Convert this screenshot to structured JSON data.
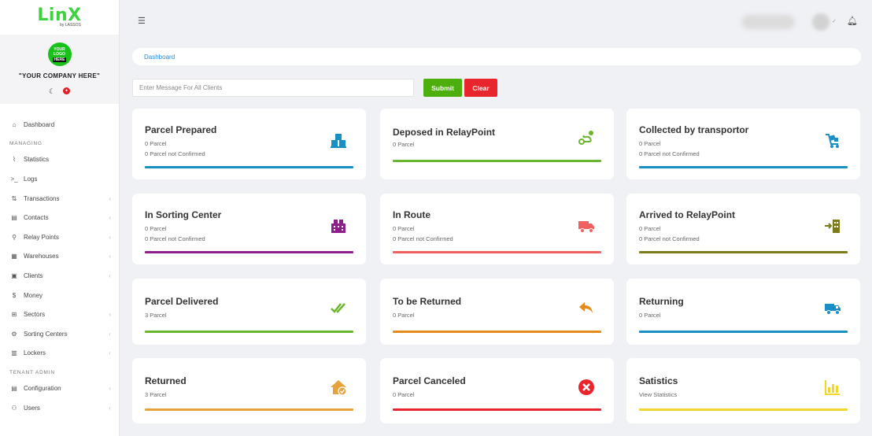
{
  "brand": {
    "logo_main": "LinX",
    "logo_sub": "by LASSOS"
  },
  "company": {
    "logo_line1": "YOUR",
    "logo_line2": "LOGO",
    "logo_line3": "HERE",
    "name": "\"YOUR COMPANY HERE\""
  },
  "sidebar": {
    "items_top": [
      {
        "label": "Dashboard",
        "icon": "dashboard-icon"
      }
    ],
    "section_managing": "MANAGING",
    "items_managing": [
      {
        "label": "Statistics",
        "icon": "chart-icon",
        "chevron": false
      },
      {
        "label": "Logs",
        "icon": "terminal-icon",
        "chevron": false
      },
      {
        "label": "Transactions",
        "icon": "transactions-icon",
        "chevron": true
      },
      {
        "label": "Contacts",
        "icon": "contacts-icon",
        "chevron": true
      },
      {
        "label": "Relay Points",
        "icon": "relay-icon",
        "chevron": true
      },
      {
        "label": "Warehouses",
        "icon": "warehouse-icon",
        "chevron": true
      },
      {
        "label": "Clients",
        "icon": "clients-icon",
        "chevron": true
      },
      {
        "label": "Money",
        "icon": "money-icon",
        "chevron": false
      },
      {
        "label": "Sectors",
        "icon": "sectors-icon",
        "chevron": true
      },
      {
        "label": "Sorting Centers",
        "icon": "sorting-icon",
        "chevron": true
      },
      {
        "label": "Lockers",
        "icon": "locker-icon",
        "chevron": true
      }
    ],
    "section_tenant": "TENANT ADMIN",
    "items_tenant": [
      {
        "label": "Configuration",
        "icon": "config-icon",
        "chevron": true
      },
      {
        "label": "Users",
        "icon": "users-icon",
        "chevron": true
      }
    ]
  },
  "breadcrumb": "Dashboard",
  "message": {
    "placeholder": "Enter Message For All Clients",
    "value": ""
  },
  "buttons": {
    "submit": "Submit",
    "clear": "Clear"
  },
  "cards": [
    {
      "title": "Parcel Prepared",
      "line1": "0 Parcel",
      "line2": "0 Parcel not Confirmed",
      "icon": "boxes-icon",
      "color": "#1a8fc4"
    },
    {
      "title": "Deposed in RelayPoint",
      "line1": "0 Parcel",
      "line2": "",
      "icon": "route-icon",
      "color": "#6cb62c"
    },
    {
      "title": "Collected by transportor",
      "line1": "0 Parcel",
      "line2": "0 Parcel not Confirmed",
      "icon": "cart-icon",
      "color": "#1a8fc4"
    },
    {
      "title": "In Sorting Center",
      "line1": "0 Parcel",
      "line2": "0 Parcel not Confirmed",
      "icon": "building-icon",
      "color": "#8e1f8a"
    },
    {
      "title": "In Route",
      "line1": "0 Parcel",
      "line2": "0 Parcel not Confirmed",
      "icon": "truck-icon",
      "color": "#f06060"
    },
    {
      "title": "Arrived to RelayPoint",
      "line1": "0 Parcel",
      "line2": "0 Parcel not Confirmed",
      "icon": "arrive-building-icon",
      "color": "#7d7a1c"
    },
    {
      "title": "Parcel Delivered",
      "line1": "3 Parcel",
      "line2": "",
      "icon": "double-check-icon",
      "color": "#6cb62c"
    },
    {
      "title": "To be Returned",
      "line1": "0 Parcel",
      "line2": "",
      "icon": "reply-icon",
      "color": "#e68a1c"
    },
    {
      "title": "Returning",
      "line1": "0 Parcel",
      "line2": "",
      "icon": "delivery-van-icon",
      "color": "#1a8fc4"
    },
    {
      "title": "Returned",
      "line1": "3 Parcel",
      "line2": "",
      "icon": "home-check-icon",
      "color": "#e8a23c"
    },
    {
      "title": "Parcel Canceled",
      "line1": "0 Parcel",
      "line2": "",
      "icon": "cancel-circle-icon",
      "color": "#e8242c"
    },
    {
      "title": "Satistics",
      "line1": "View Statistics",
      "line2": "",
      "icon": "bar-chart-icon",
      "color": "#f2d62a"
    }
  ]
}
